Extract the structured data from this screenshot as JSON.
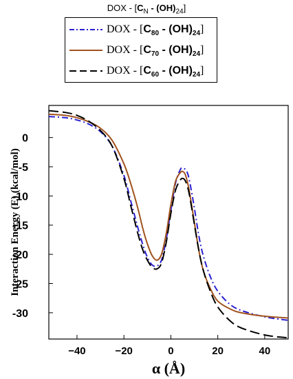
{
  "legend": {
    "title_prefix": "DOX - [",
    "title_c": "C",
    "title_n": "N",
    "title_mid": " - (OH)",
    "title_sub": "24",
    "title_end": "]",
    "entries": [
      {
        "prefix": "DOX - [",
        "c": "C",
        "n": "80",
        "mid": " - (OH)",
        "sub": "24",
        "end": "]"
      },
      {
        "prefix": "DOX - [",
        "c": "C",
        "n": "70",
        "mid": " - (OH)",
        "sub": "24",
        "end": "]"
      },
      {
        "prefix": "DOX - [",
        "c": "C",
        "n": "60",
        "mid": " - (OH)",
        "sub": "24",
        "end": "]"
      }
    ]
  },
  "chart_data": {
    "type": "line",
    "xlabel": "α (Å)",
    "ylabel": "Interaction Energy (E) (kcal/mol)",
    "xlim": [
      -52,
      50
    ],
    "ylim": [
      -34.5,
      5.5
    ],
    "xticks": [
      -40,
      -20,
      0,
      20,
      40
    ],
    "yticks": [
      0,
      -5,
      -10,
      -15,
      -20,
      -25,
      -30
    ],
    "xtick_labels": [
      "−40",
      "−20",
      "0",
      "20",
      "40"
    ],
    "ytick_labels": [
      "0",
      "-5",
      "-10",
      "-15",
      "-20",
      "-25",
      "-30"
    ],
    "grid": false,
    "legend_position": "top, outside plot",
    "series": [
      {
        "name": "DOX - [C80 - (OH)24]",
        "color": "#2a1fd0",
        "dash": "dash-dot",
        "x": [
          -52,
          -45,
          -40,
          -35,
          -30,
          -25,
          -20,
          -17,
          -14,
          -12,
          -10,
          -8,
          -6,
          -4,
          -2,
          0,
          2,
          4,
          5,
          6,
          7,
          8,
          10,
          12,
          14,
          17,
          20,
          25,
          30,
          40,
          50
        ],
        "y": [
          3.6,
          3.4,
          3.0,
          2.3,
          1.0,
          -1.5,
          -6.5,
          -11.0,
          -15.5,
          -18.3,
          -20.5,
          -21.8,
          -22.0,
          -21.0,
          -17.5,
          -12.5,
          -7.8,
          -5.5,
          -5.2,
          -5.4,
          -6.0,
          -7.5,
          -12.0,
          -17.0,
          -20.5,
          -24.0,
          -26.3,
          -28.5,
          -29.6,
          -30.7,
          -31.3
        ]
      },
      {
        "name": "DOX - [C70 - (OH)24]",
        "color": "#a0521e",
        "dash": "solid",
        "x": [
          -52,
          -45,
          -40,
          -35,
          -30,
          -25,
          -20,
          -17,
          -14,
          -12,
          -10,
          -8,
          -6,
          -4,
          -2,
          0,
          2,
          4,
          5,
          6,
          7,
          8,
          10,
          12,
          14,
          17,
          20,
          25,
          30,
          40,
          50
        ],
        "y": [
          4.0,
          3.8,
          3.4,
          2.7,
          1.6,
          -0.5,
          -4.5,
          -8.0,
          -12.2,
          -15.5,
          -18.2,
          -20.2,
          -21.0,
          -20.0,
          -16.5,
          -11.5,
          -7.5,
          -6.0,
          -5.8,
          -6.2,
          -7.5,
          -9.5,
          -14.5,
          -19.5,
          -23.0,
          -26.0,
          -28.0,
          -29.3,
          -30.0,
          -30.6,
          -30.9
        ]
      },
      {
        "name": "DOX - [C60 - (OH)24]",
        "color": "#000000",
        "dash": "long-dash",
        "x": [
          -52,
          -45,
          -40,
          -35,
          -30,
          -25,
          -20,
          -17,
          -14,
          -12,
          -10,
          -8,
          -6,
          -4,
          -2,
          0,
          2,
          4,
          5,
          6,
          7,
          8,
          10,
          12,
          14,
          17,
          20,
          25,
          30,
          40,
          50
        ],
        "y": [
          4.6,
          4.3,
          3.8,
          2.8,
          1.2,
          -1.5,
          -7.0,
          -11.8,
          -16.5,
          -19.2,
          -21.0,
          -22.2,
          -22.5,
          -21.5,
          -18.0,
          -13.0,
          -9.0,
          -7.3,
          -7.0,
          -7.3,
          -8.3,
          -10.0,
          -14.8,
          -19.5,
          -23.0,
          -26.5,
          -29.0,
          -31.3,
          -32.6,
          -33.8,
          -34.3
        ]
      }
    ]
  }
}
